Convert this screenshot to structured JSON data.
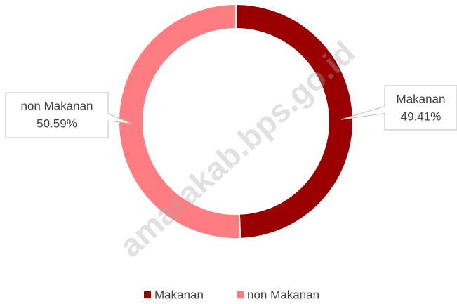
{
  "chart_data": {
    "type": "donut",
    "categories": [
      "Makanan",
      "non Makanan"
    ],
    "values": [
      49.41,
      50.59
    ],
    "value_labels": [
      "49.41%",
      "50.59%"
    ],
    "colors": [
      "#9b0000",
      "#ff7c80"
    ],
    "legend": "bottom",
    "watermark": "amarakab.bps.go.id"
  }
}
